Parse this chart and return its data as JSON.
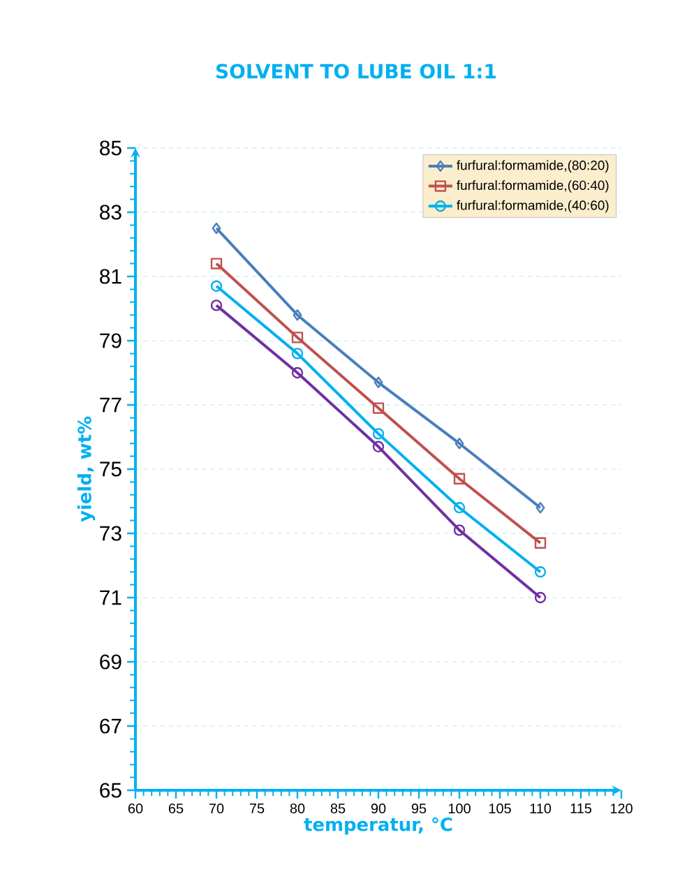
{
  "chart_data": {
    "type": "line",
    "title": "SOLVENT TO LUBE OIL 1:1",
    "xlabel": "temperatur, °C",
    "ylabel": "yield, wt%",
    "x": [
      70,
      80,
      90,
      100,
      110
    ],
    "series": [
      {
        "name": "furfural:formamide,(80:20)",
        "color": "#4a7ebb",
        "marker": "diamond",
        "values": [
          82.5,
          79.8,
          77.7,
          75.8,
          73.8
        ]
      },
      {
        "name": "furfural:formamide,(60:40)",
        "color": "#c0504d",
        "marker": "square",
        "values": [
          81.4,
          79.1,
          76.9,
          74.7,
          72.7
        ]
      },
      {
        "name": "furfural:formamide,(40:60)",
        "color": "#00b0f0",
        "marker": "circle",
        "values": [
          80.7,
          78.6,
          76.1,
          73.8,
          71.8
        ]
      },
      {
        "color": "#7030a0",
        "marker": "circle",
        "values": [
          80.1,
          78.0,
          75.7,
          73.1,
          71.0
        ]
      }
    ],
    "xlim": [
      60,
      120
    ],
    "xticks": [
      60,
      65,
      70,
      75,
      80,
      85,
      90,
      95,
      100,
      105,
      110,
      115,
      120
    ],
    "ylim": [
      65,
      85
    ],
    "yticks": [
      65,
      67,
      69,
      71,
      73,
      75,
      77,
      79,
      81,
      83,
      85
    ],
    "grid": "y",
    "legend": "top right",
    "line_style": "solid"
  }
}
